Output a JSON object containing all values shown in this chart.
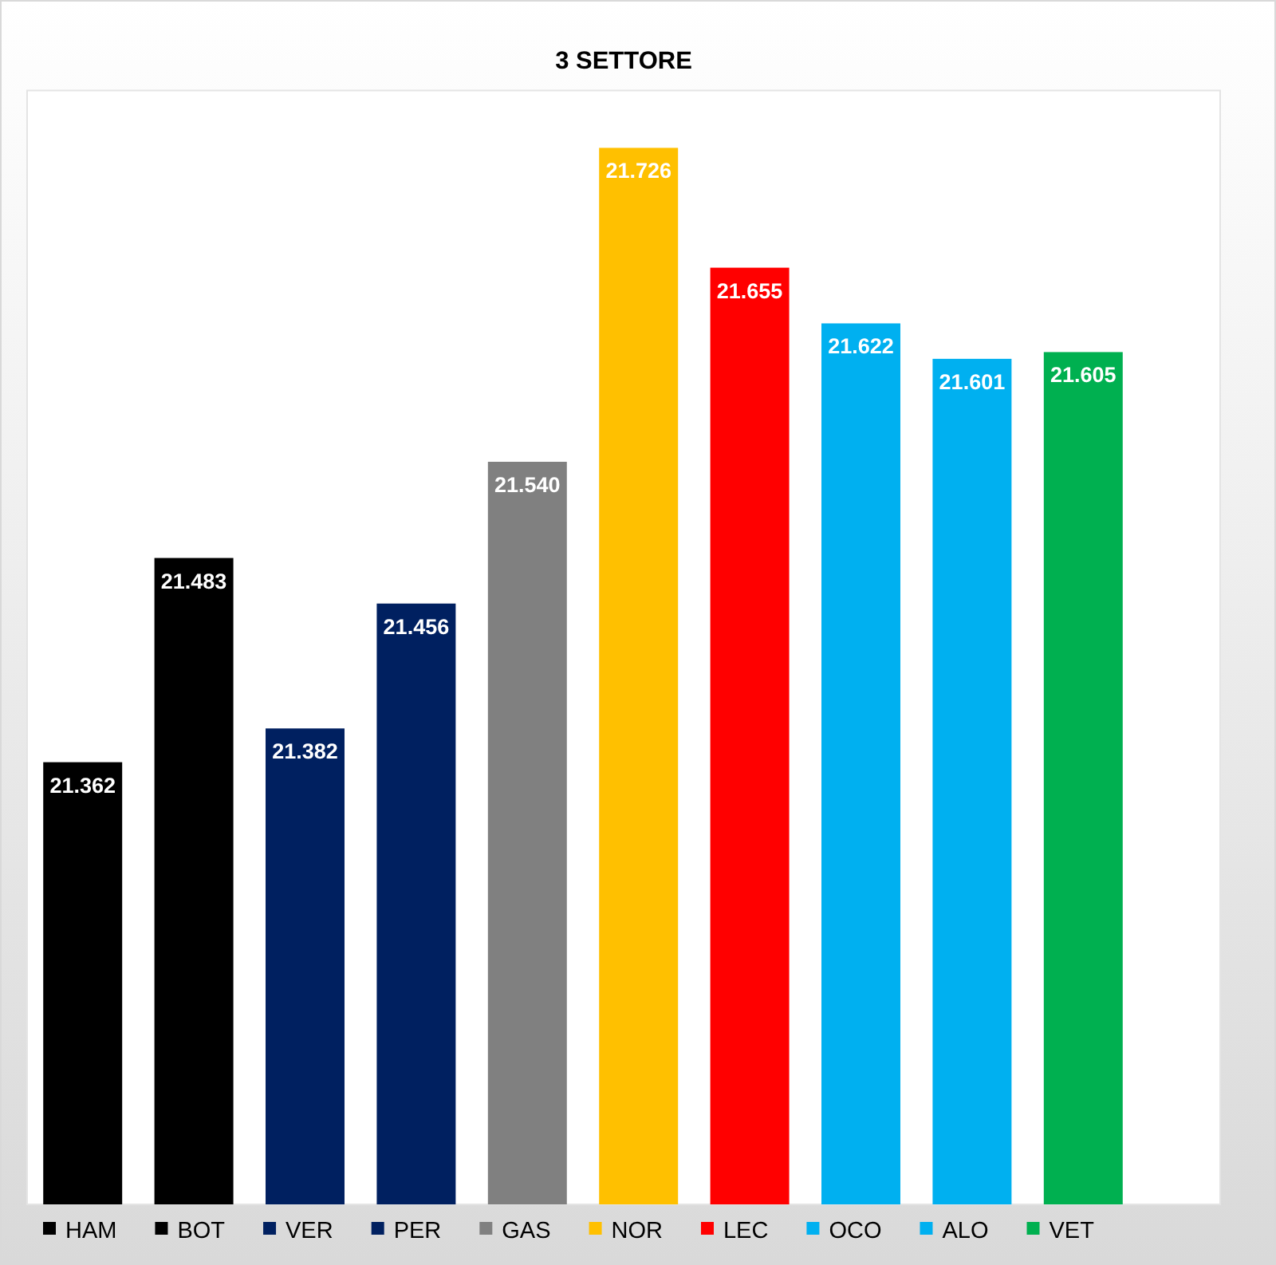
{
  "chart_data": {
    "type": "bar",
    "title": "3 SETTORE",
    "categories": [
      null,
      null,
      null,
      null,
      null,
      null,
      null,
      null,
      null,
      null
    ],
    "stacked": true,
    "series": [
      {
        "name": "HAM",
        "color": "#000000",
        "values": [
          21.362,
          null,
          null,
          null,
          null,
          null,
          null,
          null,
          null,
          null
        ],
        "value_labels": [
          "21.362",
          null,
          null,
          null,
          null,
          null,
          null,
          null,
          null,
          null
        ]
      },
      {
        "name": "BOT",
        "color": "#000000",
        "values": [
          null,
          21.483,
          null,
          null,
          null,
          null,
          null,
          null,
          null,
          null
        ],
        "value_labels": [
          null,
          "21.483",
          null,
          null,
          null,
          null,
          null,
          null,
          null,
          null
        ]
      },
      {
        "name": "VER",
        "color": "#002060",
        "values": [
          null,
          null,
          21.382,
          null,
          null,
          null,
          null,
          null,
          null,
          null
        ],
        "value_labels": [
          null,
          null,
          "21.382",
          null,
          null,
          null,
          null,
          null,
          null,
          null
        ]
      },
      {
        "name": "PER",
        "color": "#002060",
        "values": [
          null,
          null,
          null,
          21.456,
          null,
          null,
          null,
          null,
          null,
          null
        ],
        "value_labels": [
          null,
          null,
          null,
          "21.456",
          null,
          null,
          null,
          null,
          null,
          null
        ]
      },
      {
        "name": "GAS",
        "color": "#808080",
        "values": [
          null,
          null,
          null,
          null,
          21.54,
          null,
          null,
          null,
          null,
          null
        ],
        "value_labels": [
          null,
          null,
          null,
          null,
          "21.540",
          null,
          null,
          null,
          null,
          null
        ]
      },
      {
        "name": "NOR",
        "color": "#ffc000",
        "values": [
          null,
          null,
          null,
          null,
          null,
          21.726,
          null,
          null,
          null,
          null
        ],
        "value_labels": [
          null,
          null,
          null,
          null,
          null,
          "21.726",
          null,
          null,
          null,
          null
        ]
      },
      {
        "name": "LEC",
        "color": "#ff0000",
        "values": [
          null,
          null,
          null,
          null,
          null,
          null,
          21.655,
          null,
          null,
          null
        ],
        "value_labels": [
          null,
          null,
          null,
          null,
          null,
          null,
          "21.655",
          null,
          null,
          null
        ]
      },
      {
        "name": "OCO",
        "color": "#00b0f0",
        "values": [
          null,
          null,
          null,
          null,
          null,
          null,
          null,
          21.622,
          null,
          null
        ],
        "value_labels": [
          null,
          null,
          null,
          null,
          null,
          null,
          null,
          "21.622",
          null,
          null
        ]
      },
      {
        "name": "ALO",
        "color": "#00b0f0",
        "values": [
          null,
          null,
          null,
          null,
          null,
          null,
          null,
          null,
          21.601,
          null
        ],
        "value_labels": [
          null,
          null,
          null,
          null,
          null,
          null,
          null,
          null,
          "21.601",
          null
        ]
      },
      {
        "name": "VET",
        "color": "#00b050",
        "values": [
          null,
          null,
          null,
          null,
          null,
          null,
          null,
          null,
          null,
          21.605
        ],
        "value_labels": [
          null,
          null,
          null,
          null,
          null,
          null,
          null,
          null,
          null,
          "21.605"
        ]
      }
    ],
    "ylim": [
      21.1,
      21.76
    ],
    "legend": "bottom"
  }
}
